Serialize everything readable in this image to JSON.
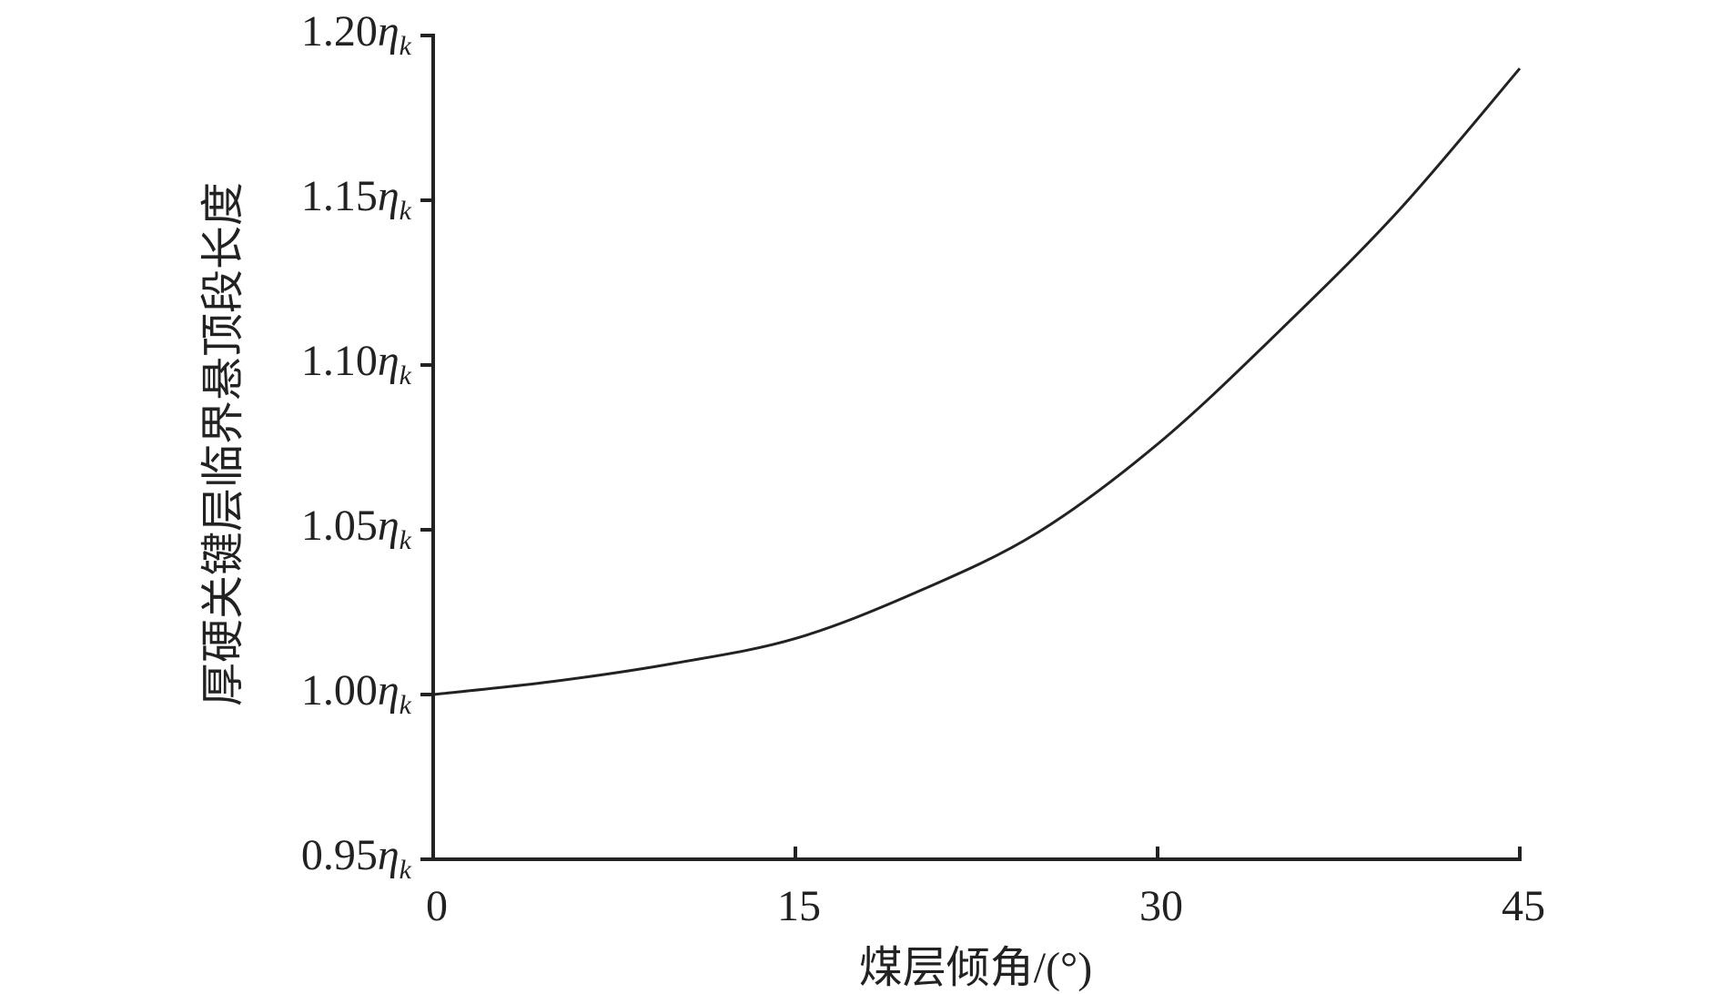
{
  "chart_data": {
    "type": "line",
    "x_label": "煤层倾角/(°)",
    "y_label": "厚硬关键层临界悬顶段长度",
    "x": [
      0,
      5,
      10,
      15,
      20,
      25,
      30,
      35,
      40,
      45
    ],
    "series": [
      {
        "color": "#222222",
        "values": [
          1.0,
          1.004,
          1.0095,
          1.017,
          1.031,
          1.049,
          1.076,
          1.11,
          1.147,
          1.19
        ]
      }
    ],
    "xlim": [
      0,
      45
    ],
    "xticks": [
      0,
      15,
      30,
      45
    ],
    "ylim": [
      0.95,
      1.2
    ],
    "yticks": [
      {
        "value": 0.95,
        "label": "0.95ηk"
      },
      {
        "value": 1.0,
        "label": "1.00ηk"
      },
      {
        "value": 1.05,
        "label": "1.05ηk"
      },
      {
        "value": 1.1,
        "label": "1.10ηk"
      },
      {
        "value": 1.15,
        "label": "1.15ηk"
      },
      {
        "value": 1.2,
        "label": "1.20ηk"
      }
    ]
  }
}
